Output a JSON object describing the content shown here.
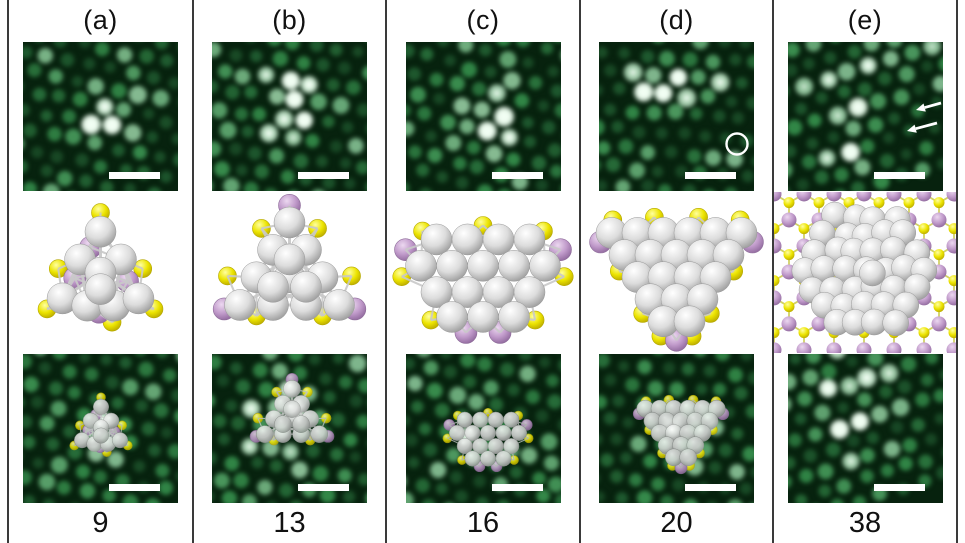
{
  "figure": {
    "type": "scientific-figure-panel-grid",
    "panels": [
      {
        "label": "(a)",
        "count": "9",
        "top_image": "stm-image",
        "middle": "cluster-model",
        "bottom_image": "stm-image-with-model-overlay"
      },
      {
        "label": "(b)",
        "count": "13",
        "top_image": "stm-image",
        "middle": "cluster-model",
        "bottom_image": "stm-image-with-model-overlay"
      },
      {
        "label": "(c)",
        "count": "16",
        "top_image": "stm-image",
        "middle": "cluster-model",
        "bottom_image": "stm-image-with-model-overlay"
      },
      {
        "label": "(d)",
        "count": "20",
        "top_image": "stm-image",
        "middle": "cluster-model",
        "bottom_image": "stm-image-with-model-overlay",
        "top_marker": "circle-annotation"
      },
      {
        "label": "(e)",
        "count": "38",
        "top_image": "stm-image",
        "middle": "cluster-model-on-lattice",
        "bottom_image": "stm-image",
        "top_marker": "arrow-annotations",
        "arrow_count": 2
      }
    ],
    "colors": {
      "background": "#ffffff",
      "divider": "#3a3a3a",
      "text": "#111111",
      "stm_background": "#07220e",
      "stm_spot_dim": "#2e7a44",
      "stm_spot_bright": "#eefff0",
      "atom_gray": "#d8d8d8",
      "atom_yellow": "#ece400",
      "atom_purple": "#c09aca",
      "bond": "#c9c9c9",
      "scale_bar": "#ffffff",
      "annotation": "#ffffff"
    }
  }
}
